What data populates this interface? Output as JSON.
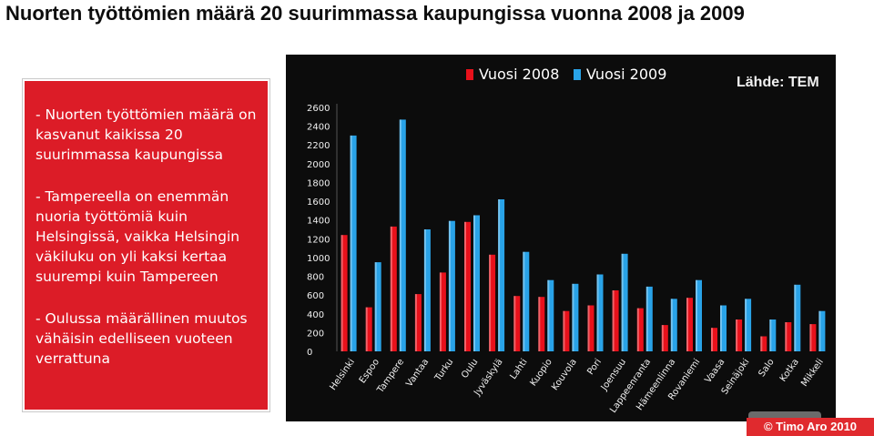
{
  "title": "Nuorten työttömien määrä 20 suurimmassa kaupungissa vuonna 2008 ja 2009",
  "bullets": [
    "- Nuorten työttömien määrä on kasvanut kaikissa 20 suurimmassa kaupungissa",
    "- Tampereella on enemmän nuoria työttömiä kuin Helsingissä, vaikka Helsingin väkiluku on yli kaksi kertaa suurempi kuin Tampereen",
    "- Oulussa määrällinen muutos vähäisin edelliseen vuoteen verrattuna"
  ],
  "source_label": "Lähde: TEM",
  "copyright": "© Timo Aro 2010",
  "colors": {
    "series_2008": "#e8111b",
    "series_2009": "#29a3e8",
    "chart_bg": "#0c0c0c",
    "box_red": "#dc1c27"
  },
  "chart_data": {
    "type": "bar",
    "title": "",
    "xlabel": "",
    "ylabel": "",
    "ylim": [
      0,
      2600
    ],
    "yticks": [
      0,
      200,
      400,
      600,
      800,
      1000,
      1200,
      1400,
      1600,
      1800,
      2000,
      2200,
      2400,
      2600
    ],
    "legend_position": "top",
    "categories": [
      "Helsinki",
      "Espoo",
      "Tampere",
      "Vantaa",
      "Turku",
      "Oulu",
      "Jyväskylä",
      "Lahti",
      "Kuopio",
      "Kouvola",
      "Pori",
      "Joensuu",
      "Lappeenranta",
      "Hämeenlinna",
      "Rovaniemi",
      "Vaasa",
      "Seinäjoki",
      "Salo",
      "Kotka",
      "Mikkeli"
    ],
    "series": [
      {
        "name": "Vuosi 2008",
        "values": [
          1240,
          470,
          1330,
          610,
          840,
          1380,
          1030,
          590,
          580,
          430,
          490,
          650,
          460,
          280,
          570,
          250,
          340,
          160,
          310,
          290
        ]
      },
      {
        "name": "Vuosi 2009",
        "values": [
          2300,
          950,
          2470,
          1300,
          1390,
          1450,
          1620,
          1060,
          760,
          720,
          820,
          1040,
          690,
          560,
          760,
          490,
          560,
          340,
          710,
          430
        ]
      }
    ]
  }
}
